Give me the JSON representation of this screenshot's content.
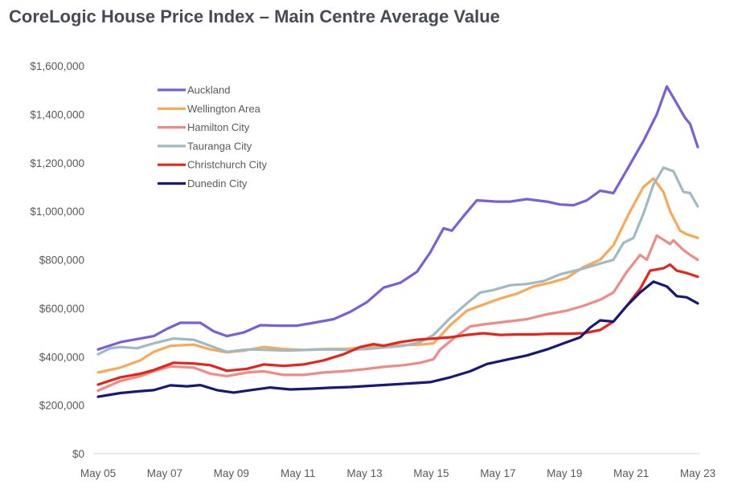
{
  "chart_data": {
    "type": "line",
    "title": "CoreLogic House Price Index – Main Centre Average Value",
    "xlabel": "",
    "ylabel": "",
    "ylim": [
      0,
      1600000
    ],
    "yticks": [
      0,
      200000,
      400000,
      600000,
      800000,
      1000000,
      1200000,
      1400000,
      1600000
    ],
    "ytick_labels": [
      "$0",
      "$200,000",
      "$400,000",
      "$600,000",
      "$800,000",
      "$1,000,000",
      "$1,200,000",
      "$1,400,000",
      "$1,600,000"
    ],
    "xlim": [
      2005.33,
      2023.33
    ],
    "xticks": [
      2005.33,
      2007.33,
      2009.33,
      2011.33,
      2013.33,
      2015.33,
      2017.33,
      2019.33,
      2021.33,
      2023.33
    ],
    "xtick_labels": [
      "May 05",
      "May 07",
      "May 09",
      "May 11",
      "May 13",
      "May 15",
      "May 17",
      "May 19",
      "May 21",
      "May 23"
    ],
    "grid": false,
    "legend_position": "top-left",
    "series": [
      {
        "name": "Auckland",
        "color": "#7b5fd9",
        "points": [
          [
            2005.33,
            430000
          ],
          [
            2006.0,
            460000
          ],
          [
            2006.6,
            475000
          ],
          [
            2007.0,
            485000
          ],
          [
            2007.4,
            515000
          ],
          [
            2007.8,
            540000
          ],
          [
            2008.4,
            540000
          ],
          [
            2008.8,
            505000
          ],
          [
            2009.2,
            485000
          ],
          [
            2009.7,
            500000
          ],
          [
            2010.2,
            530000
          ],
          [
            2010.8,
            528000
          ],
          [
            2011.3,
            528000
          ],
          [
            2011.8,
            540000
          ],
          [
            2012.4,
            555000
          ],
          [
            2012.9,
            585000
          ],
          [
            2013.4,
            625000
          ],
          [
            2013.9,
            685000
          ],
          [
            2014.4,
            705000
          ],
          [
            2014.9,
            750000
          ],
          [
            2015.3,
            830000
          ],
          [
            2015.7,
            930000
          ],
          [
            2015.95,
            920000
          ],
          [
            2016.3,
            980000
          ],
          [
            2016.7,
            1045000
          ],
          [
            2017.3,
            1040000
          ],
          [
            2017.7,
            1040000
          ],
          [
            2018.2,
            1050000
          ],
          [
            2018.8,
            1040000
          ],
          [
            2019.2,
            1028000
          ],
          [
            2019.6,
            1025000
          ],
          [
            2020.0,
            1045000
          ],
          [
            2020.4,
            1085000
          ],
          [
            2020.8,
            1075000
          ],
          [
            2021.2,
            1170000
          ],
          [
            2021.7,
            1290000
          ],
          [
            2022.1,
            1400000
          ],
          [
            2022.4,
            1515000
          ],
          [
            2022.7,
            1445000
          ],
          [
            2022.95,
            1385000
          ],
          [
            2023.1,
            1360000
          ],
          [
            2023.33,
            1265000
          ]
        ]
      },
      {
        "name": "Wellington Area",
        "color": "#f9a857",
        "points": [
          [
            2005.33,
            335000
          ],
          [
            2006.0,
            355000
          ],
          [
            2006.6,
            385000
          ],
          [
            2007.0,
            420000
          ],
          [
            2007.5,
            445000
          ],
          [
            2008.2,
            450000
          ],
          [
            2008.7,
            430000
          ],
          [
            2009.2,
            418000
          ],
          [
            2009.7,
            425000
          ],
          [
            2010.3,
            440000
          ],
          [
            2010.9,
            432000
          ],
          [
            2011.5,
            428000
          ],
          [
            2012.2,
            432000
          ],
          [
            2012.8,
            432000
          ],
          [
            2013.3,
            440000
          ],
          [
            2013.9,
            445000
          ],
          [
            2014.5,
            448000
          ],
          [
            2015.0,
            450000
          ],
          [
            2015.4,
            455000
          ],
          [
            2015.9,
            530000
          ],
          [
            2016.4,
            590000
          ],
          [
            2016.9,
            615000
          ],
          [
            2017.4,
            640000
          ],
          [
            2017.9,
            660000
          ],
          [
            2018.4,
            690000
          ],
          [
            2018.9,
            705000
          ],
          [
            2019.4,
            725000
          ],
          [
            2019.9,
            770000
          ],
          [
            2020.4,
            800000
          ],
          [
            2020.8,
            860000
          ],
          [
            2021.3,
            1000000
          ],
          [
            2021.7,
            1100000
          ],
          [
            2022.0,
            1135000
          ],
          [
            2022.3,
            1080000
          ],
          [
            2022.5,
            1000000
          ],
          [
            2022.8,
            920000
          ],
          [
            2023.0,
            905000
          ],
          [
            2023.33,
            890000
          ]
        ]
      },
      {
        "name": "Hamilton City",
        "color": "#ef8a87",
        "points": [
          [
            2005.33,
            260000
          ],
          [
            2006.0,
            300000
          ],
          [
            2006.6,
            320000
          ],
          [
            2007.0,
            340000
          ],
          [
            2007.5,
            360000
          ],
          [
            2008.2,
            355000
          ],
          [
            2008.7,
            330000
          ],
          [
            2009.2,
            320000
          ],
          [
            2009.8,
            335000
          ],
          [
            2010.3,
            340000
          ],
          [
            2010.9,
            325000
          ],
          [
            2011.5,
            325000
          ],
          [
            2012.1,
            335000
          ],
          [
            2012.7,
            340000
          ],
          [
            2013.3,
            348000
          ],
          [
            2013.9,
            358000
          ],
          [
            2014.5,
            365000
          ],
          [
            2015.0,
            375000
          ],
          [
            2015.4,
            390000
          ],
          [
            2015.6,
            430000
          ],
          [
            2016.0,
            475000
          ],
          [
            2016.5,
            525000
          ],
          [
            2017.0,
            535000
          ],
          [
            2017.6,
            545000
          ],
          [
            2018.2,
            555000
          ],
          [
            2018.8,
            575000
          ],
          [
            2019.4,
            590000
          ],
          [
            2019.9,
            610000
          ],
          [
            2020.4,
            635000
          ],
          [
            2020.8,
            665000
          ],
          [
            2021.2,
            750000
          ],
          [
            2021.6,
            820000
          ],
          [
            2021.8,
            800000
          ],
          [
            2022.1,
            900000
          ],
          [
            2022.5,
            865000
          ],
          [
            2022.6,
            880000
          ],
          [
            2022.9,
            840000
          ],
          [
            2023.1,
            820000
          ],
          [
            2023.33,
            800000
          ]
        ]
      },
      {
        "name": "Tauranga City",
        "color": "#9fbac3",
        "points": [
          [
            2005.33,
            410000
          ],
          [
            2005.7,
            435000
          ],
          [
            2006.0,
            440000
          ],
          [
            2006.5,
            435000
          ],
          [
            2007.0,
            455000
          ],
          [
            2007.6,
            475000
          ],
          [
            2008.2,
            470000
          ],
          [
            2008.7,
            445000
          ],
          [
            2009.2,
            420000
          ],
          [
            2009.8,
            430000
          ],
          [
            2010.4,
            428000
          ],
          [
            2011.0,
            425000
          ],
          [
            2011.6,
            428000
          ],
          [
            2012.2,
            430000
          ],
          [
            2012.8,
            428000
          ],
          [
            2013.4,
            432000
          ],
          [
            2013.9,
            438000
          ],
          [
            2014.5,
            445000
          ],
          [
            2015.0,
            460000
          ],
          [
            2015.4,
            490000
          ],
          [
            2015.9,
            560000
          ],
          [
            2016.4,
            620000
          ],
          [
            2016.8,
            665000
          ],
          [
            2017.2,
            675000
          ],
          [
            2017.7,
            695000
          ],
          [
            2018.2,
            700000
          ],
          [
            2018.7,
            712000
          ],
          [
            2019.2,
            740000
          ],
          [
            2019.8,
            760000
          ],
          [
            2020.3,
            780000
          ],
          [
            2020.8,
            800000
          ],
          [
            2021.1,
            870000
          ],
          [
            2021.4,
            890000
          ],
          [
            2021.7,
            990000
          ],
          [
            2022.0,
            1110000
          ],
          [
            2022.3,
            1180000
          ],
          [
            2022.6,
            1165000
          ],
          [
            2022.9,
            1080000
          ],
          [
            2023.1,
            1075000
          ],
          [
            2023.33,
            1020000
          ]
        ]
      },
      {
        "name": "Christchurch City",
        "color": "#e8241a",
        "points": [
          [
            2005.33,
            285000
          ],
          [
            2006.0,
            315000
          ],
          [
            2006.6,
            330000
          ],
          [
            2007.0,
            345000
          ],
          [
            2007.6,
            375000
          ],
          [
            2008.2,
            372000
          ],
          [
            2008.7,
            365000
          ],
          [
            2009.2,
            342000
          ],
          [
            2009.8,
            350000
          ],
          [
            2010.3,
            368000
          ],
          [
            2010.9,
            362000
          ],
          [
            2011.5,
            368000
          ],
          [
            2012.1,
            385000
          ],
          [
            2012.7,
            410000
          ],
          [
            2013.2,
            440000
          ],
          [
            2013.6,
            452000
          ],
          [
            2013.9,
            445000
          ],
          [
            2014.4,
            460000
          ],
          [
            2014.9,
            470000
          ],
          [
            2015.4,
            475000
          ],
          [
            2015.9,
            480000
          ],
          [
            2016.4,
            490000
          ],
          [
            2016.9,
            497000
          ],
          [
            2017.4,
            490000
          ],
          [
            2017.9,
            492000
          ],
          [
            2018.4,
            492000
          ],
          [
            2018.9,
            495000
          ],
          [
            2019.4,
            495000
          ],
          [
            2019.9,
            497000
          ],
          [
            2020.4,
            510000
          ],
          [
            2020.8,
            545000
          ],
          [
            2021.2,
            610000
          ],
          [
            2021.6,
            680000
          ],
          [
            2021.9,
            755000
          ],
          [
            2022.3,
            765000
          ],
          [
            2022.5,
            780000
          ],
          [
            2022.7,
            755000
          ],
          [
            2023.0,
            745000
          ],
          [
            2023.33,
            730000
          ]
        ]
      },
      {
        "name": "Dunedin City",
        "color": "#15197a",
        "points": [
          [
            2005.33,
            235000
          ],
          [
            2006.0,
            250000
          ],
          [
            2006.6,
            258000
          ],
          [
            2007.0,
            262000
          ],
          [
            2007.5,
            282000
          ],
          [
            2008.0,
            278000
          ],
          [
            2008.4,
            283000
          ],
          [
            2008.9,
            262000
          ],
          [
            2009.4,
            252000
          ],
          [
            2009.9,
            262000
          ],
          [
            2010.5,
            273000
          ],
          [
            2011.1,
            265000
          ],
          [
            2011.7,
            268000
          ],
          [
            2012.3,
            272000
          ],
          [
            2012.9,
            275000
          ],
          [
            2013.5,
            280000
          ],
          [
            2014.1,
            285000
          ],
          [
            2014.7,
            290000
          ],
          [
            2015.3,
            295000
          ],
          [
            2015.9,
            315000
          ],
          [
            2016.5,
            340000
          ],
          [
            2017.0,
            370000
          ],
          [
            2017.6,
            388000
          ],
          [
            2018.2,
            405000
          ],
          [
            2018.8,
            430000
          ],
          [
            2019.4,
            460000
          ],
          [
            2019.8,
            480000
          ],
          [
            2020.1,
            520000
          ],
          [
            2020.4,
            550000
          ],
          [
            2020.8,
            545000
          ],
          [
            2021.2,
            610000
          ],
          [
            2021.6,
            665000
          ],
          [
            2022.0,
            710000
          ],
          [
            2022.4,
            690000
          ],
          [
            2022.7,
            650000
          ],
          [
            2023.0,
            645000
          ],
          [
            2023.33,
            620000
          ]
        ]
      }
    ]
  }
}
